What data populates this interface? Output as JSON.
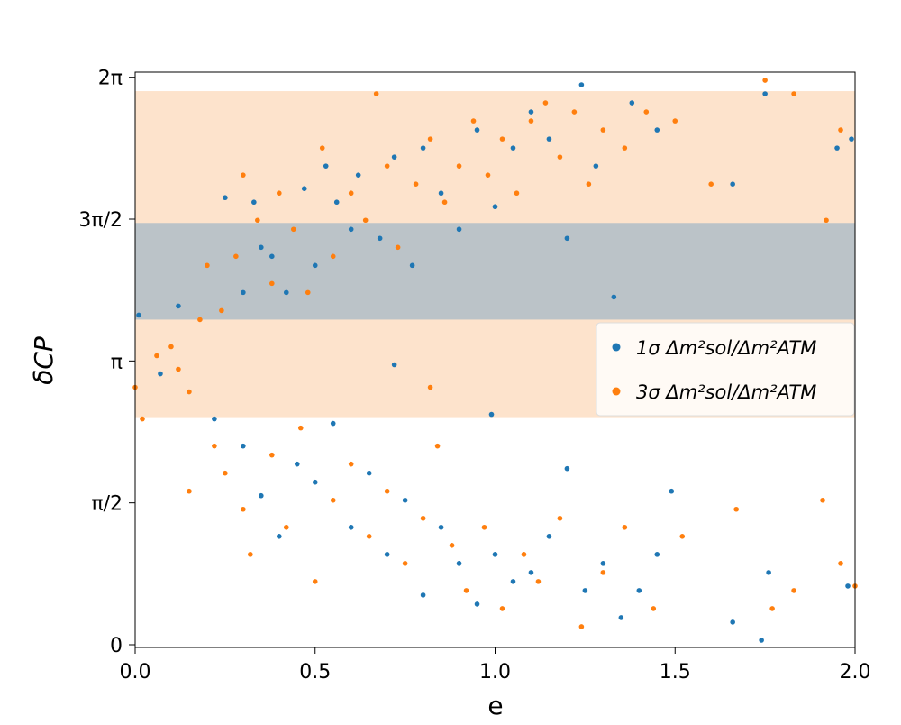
{
  "chart_data": {
    "type": "scatter",
    "xlabel": "e",
    "ylabel": "δCP",
    "xlim": [
      0,
      2
    ],
    "ylim": [
      -0.03,
      6.34
    ],
    "xticks": [
      {
        "value": 0,
        "label": "0.0"
      },
      0.5,
      {
        "value": 1,
        "label": "1.0"
      },
      1.5,
      {
        "value": 2,
        "label": "2.0"
      }
    ],
    "yticks": [
      0,
      {
        "value": 1.5708,
        "label": "π/2"
      },
      {
        "value": 3.1416,
        "label": "π"
      },
      {
        "value": 4.7124,
        "label": "3π/2"
      },
      {
        "value": 6.2832,
        "label": "2π"
      }
    ],
    "bands": [
      {
        "ymin": 2.52,
        "ymax": 6.13,
        "color": "#fde3cc"
      },
      {
        "ymin": 3.6,
        "ymax": 4.67,
        "color": "#bbc3c8"
      }
    ],
    "legend": "right",
    "series": [
      {
        "name": "1σ Δm²sol/Δm²ATM",
        "color": "#1f77b4",
        "x": [
          0.01,
          0.07,
          0.12,
          0.25,
          0.3,
          0.33,
          0.35,
          0.38,
          0.42,
          0.47,
          0.5,
          0.53,
          0.56,
          0.6,
          0.62,
          0.68,
          0.72,
          0.77,
          0.8,
          0.85,
          0.9,
          0.95,
          1.0,
          1.05,
          1.1,
          1.15,
          1.2,
          1.24,
          1.28,
          1.33,
          1.38,
          1.45,
          1.66,
          1.75,
          1.95,
          1.99,
          0.22,
          0.3,
          0.35,
          0.4,
          0.45,
          0.5,
          0.55,
          0.6,
          0.65,
          0.7,
          0.75,
          0.8,
          0.85,
          0.9,
          0.95,
          1.0,
          1.05,
          1.1,
          1.15,
          1.2,
          1.25,
          1.3,
          1.35,
          1.4,
          1.45,
          1.49,
          1.66,
          1.76,
          1.74,
          1.98,
          0.99,
          0.72
        ],
        "y": [
          3.65,
          3.0,
          3.75,
          4.95,
          3.9,
          4.9,
          4.4,
          4.3,
          3.9,
          5.05,
          4.2,
          5.3,
          4.9,
          4.6,
          5.2,
          4.5,
          5.4,
          4.2,
          5.5,
          5.0,
          4.6,
          5.7,
          4.85,
          5.5,
          5.9,
          5.6,
          4.5,
          6.2,
          5.3,
          3.85,
          6.0,
          5.7,
          5.1,
          6.1,
          5.5,
          5.6,
          2.5,
          2.2,
          1.65,
          1.2,
          2.0,
          1.8,
          2.45,
          1.3,
          1.9,
          1.0,
          1.6,
          0.55,
          1.3,
          0.9,
          0.45,
          1.0,
          0.7,
          0.8,
          1.2,
          1.95,
          0.6,
          0.9,
          0.3,
          0.6,
          1.0,
          1.7,
          0.25,
          0.8,
          0.05,
          0.65,
          2.55,
          3.1
        ]
      },
      {
        "name": "3σ Δm²sol/Δm²ATM",
        "color": "#ff7f0e",
        "x": [
          0.0,
          0.02,
          0.06,
          0.1,
          0.12,
          0.15,
          0.18,
          0.2,
          0.24,
          0.28,
          0.3,
          0.34,
          0.38,
          0.4,
          0.44,
          0.48,
          0.52,
          0.55,
          0.6,
          0.64,
          0.67,
          0.7,
          0.73,
          0.78,
          0.82,
          0.86,
          0.9,
          0.94,
          0.98,
          1.02,
          1.06,
          1.1,
          1.14,
          1.18,
          1.22,
          1.26,
          1.3,
          1.36,
          1.42,
          1.5,
          1.6,
          1.75,
          1.83,
          1.92,
          1.96,
          0.15,
          0.22,
          0.25,
          0.3,
          0.32,
          0.38,
          0.42,
          0.46,
          0.5,
          0.55,
          0.6,
          0.65,
          0.7,
          0.75,
          0.8,
          0.84,
          0.88,
          0.92,
          0.97,
          1.02,
          1.08,
          1.12,
          1.18,
          1.24,
          1.3,
          1.36,
          1.44,
          1.52,
          1.67,
          1.77,
          1.83,
          1.91,
          1.96,
          2.0,
          0.82
        ],
        "y": [
          2.85,
          2.5,
          3.2,
          3.3,
          3.05,
          2.8,
          3.6,
          4.2,
          3.7,
          4.3,
          5.2,
          4.7,
          4.0,
          5.0,
          4.6,
          3.9,
          5.5,
          4.3,
          5.0,
          4.7,
          6.1,
          5.3,
          4.4,
          5.1,
          5.6,
          4.9,
          5.3,
          5.8,
          5.2,
          5.6,
          5.0,
          5.8,
          6.0,
          5.4,
          5.9,
          5.1,
          5.7,
          5.5,
          5.9,
          5.8,
          5.1,
          6.25,
          6.1,
          4.7,
          5.7,
          1.7,
          2.2,
          1.9,
          1.5,
          1.0,
          2.1,
          1.3,
          2.4,
          0.7,
          1.6,
          2.0,
          1.2,
          1.7,
          0.9,
          1.4,
          2.2,
          1.1,
          0.6,
          1.3,
          0.4,
          1.0,
          0.7,
          1.4,
          0.2,
          0.8,
          1.3,
          0.4,
          1.2,
          1.5,
          0.4,
          0.6,
          1.6,
          0.9,
          0.65,
          2.85
        ]
      }
    ]
  }
}
